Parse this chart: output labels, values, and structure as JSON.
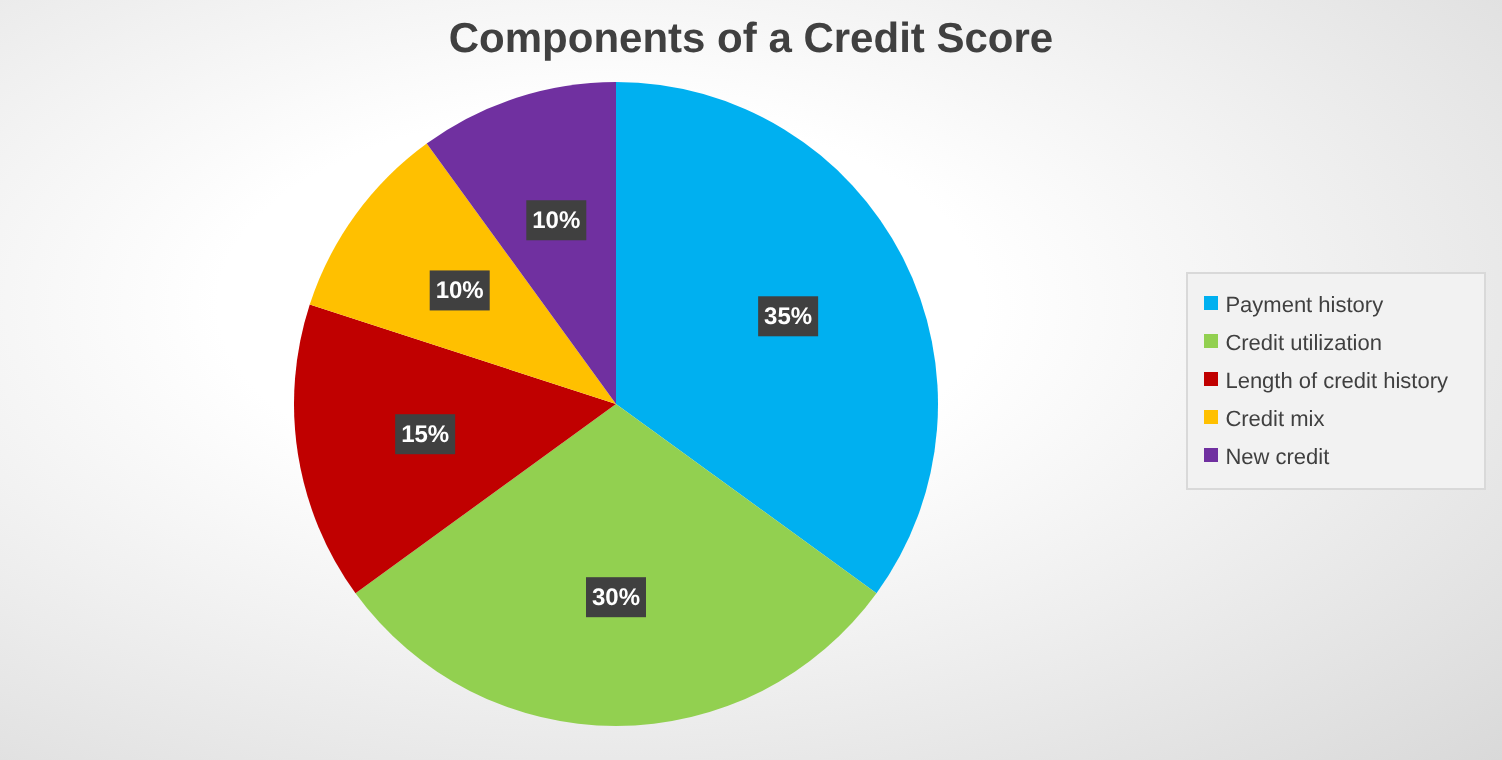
{
  "chart_data": {
    "type": "pie",
    "title": "Components of a Credit Score",
    "categories": [
      "Payment history",
      "Credit utilization",
      "Length of credit history",
      "Credit mix",
      "New credit"
    ],
    "values": [
      35,
      30,
      15,
      10,
      10
    ],
    "colors": [
      "#00b0f0",
      "#92d050",
      "#c00000",
      "#ffc000",
      "#7030a0"
    ],
    "value_labels": [
      "35%",
      "30%",
      "15%",
      "10%",
      "10%"
    ],
    "legend": "right"
  }
}
